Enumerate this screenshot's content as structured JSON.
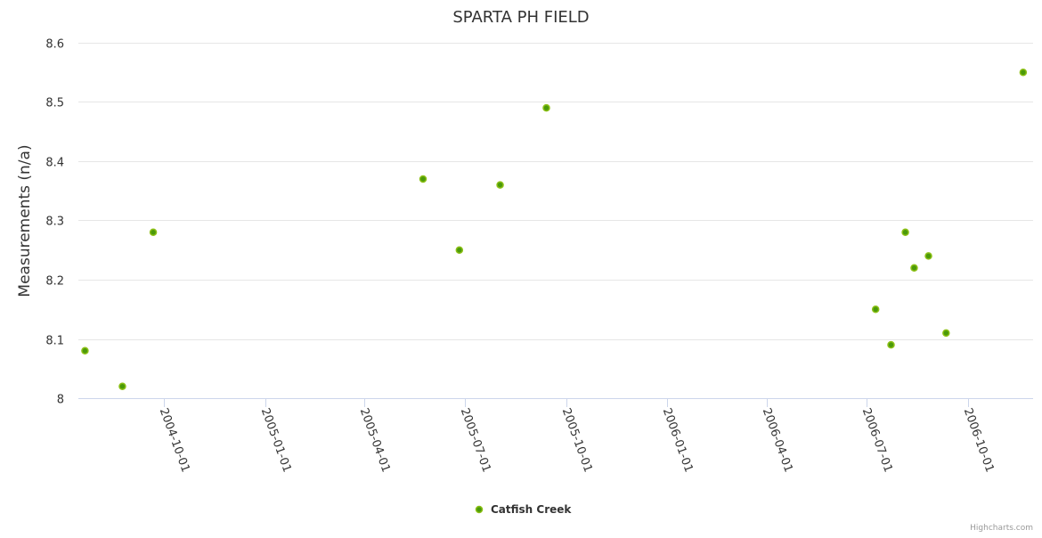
{
  "chart_data": {
    "type": "scatter",
    "title": "SPARTA PH FIELD",
    "xlabel": "",
    "ylabel": "Measurements (n/a)",
    "ylim": [
      8,
      8.6
    ],
    "xlim": [
      "2004-07-15",
      "2006-11-29"
    ],
    "yticks": [
      "8",
      "8.1",
      "8.2",
      "8.3",
      "8.4",
      "8.5",
      "8.6"
    ],
    "ytick_values": [
      8,
      8.1,
      8.2,
      8.3,
      8.4,
      8.5,
      8.6
    ],
    "xticks": [
      "2004-10-01",
      "2005-01-01",
      "2005-04-01",
      "2005-07-01",
      "2005-10-01",
      "2006-01-01",
      "2006-04-01",
      "2006-07-01",
      "2006-10-01"
    ],
    "grid": true,
    "legend_position": "bottom-center",
    "series": [
      {
        "name": "Catfish Creek",
        "color": "#4b9a0a",
        "border_color": "#8cc016",
        "points": [
          {
            "x": "2004-07-21",
            "y": 8.08
          },
          {
            "x": "2004-08-24",
            "y": 8.02
          },
          {
            "x": "2004-09-21",
            "y": 8.28
          },
          {
            "x": "2005-05-24",
            "y": 8.37
          },
          {
            "x": "2005-06-26",
            "y": 8.25
          },
          {
            "x": "2005-08-02",
            "y": 8.36
          },
          {
            "x": "2005-09-13",
            "y": 8.49
          },
          {
            "x": "2006-07-09",
            "y": 8.15
          },
          {
            "x": "2006-07-23",
            "y": 8.09
          },
          {
            "x": "2006-08-05",
            "y": 8.28
          },
          {
            "x": "2006-08-13",
            "y": 8.22
          },
          {
            "x": "2006-08-26",
            "y": 8.24
          },
          {
            "x": "2006-09-11",
            "y": 8.11
          },
          {
            "x": "2006-11-20",
            "y": 8.55
          }
        ]
      }
    ]
  },
  "credits": "Highcharts.com"
}
